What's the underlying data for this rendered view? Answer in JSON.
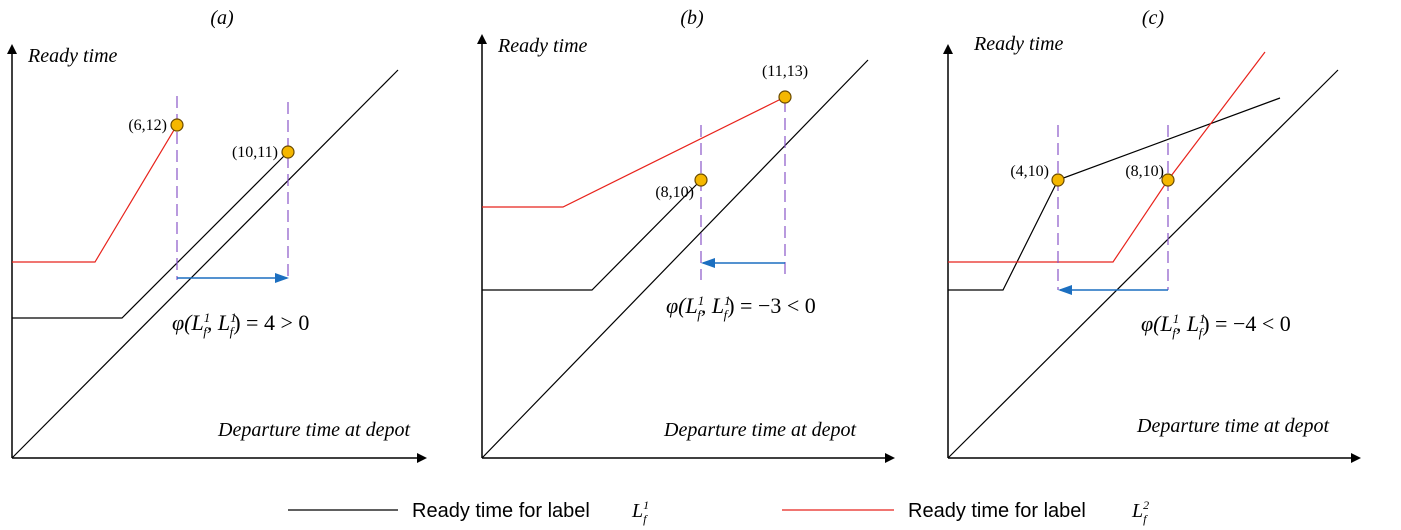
{
  "colors": {
    "black_line": "#000000",
    "red_line": "#e8231c",
    "dashed_line": "#8a56c9",
    "arrow": "#1c6fc0",
    "point_fill": "#f5b700",
    "point_stroke": "#6a4a00"
  },
  "panels": [
    {
      "label": "(a)",
      "y_axis_label": "Ready time",
      "x_axis_label": "Departure time at depot",
      "points": [
        {
          "label": "(6,12)"
        },
        {
          "label": "(10,11)"
        }
      ],
      "formula": {
        "prefix": "φ(L",
        "sub": "f",
        "sup1": "1",
        "mid": ", L",
        "sup2": "1",
        "suffix": ") = 4 > 0"
      }
    },
    {
      "label": "(b)",
      "y_axis_label": "Ready time",
      "x_axis_label": "Departure time at depot",
      "points": [
        {
          "label": "(11,13)"
        },
        {
          "label": "(8,10)"
        }
      ],
      "formula": {
        "prefix": "φ(L",
        "sub": "f",
        "sup1": "1",
        "mid": ", L",
        "sup2": "1",
        "suffix": ") = −3 < 0"
      }
    },
    {
      "label": "(c)",
      "y_axis_label": "Ready time",
      "x_axis_label": "Departure time at depot",
      "points": [
        {
          "label": "(4,10)"
        },
        {
          "label": "(8,10)"
        }
      ],
      "formula": {
        "prefix": "φ(L",
        "sub": "f",
        "sup1": "1",
        "mid": ", L",
        "sup2": "1",
        "suffix": ") = −4 < 0"
      }
    }
  ],
  "legend": [
    {
      "text": "Ready time for label",
      "symbol": "L",
      "sub": "f",
      "sup": "1",
      "color_key": "black_line"
    },
    {
      "text": "Ready time for label",
      "symbol": "L",
      "sub": "f",
      "sup": "2",
      "color_key": "red_line"
    }
  ]
}
